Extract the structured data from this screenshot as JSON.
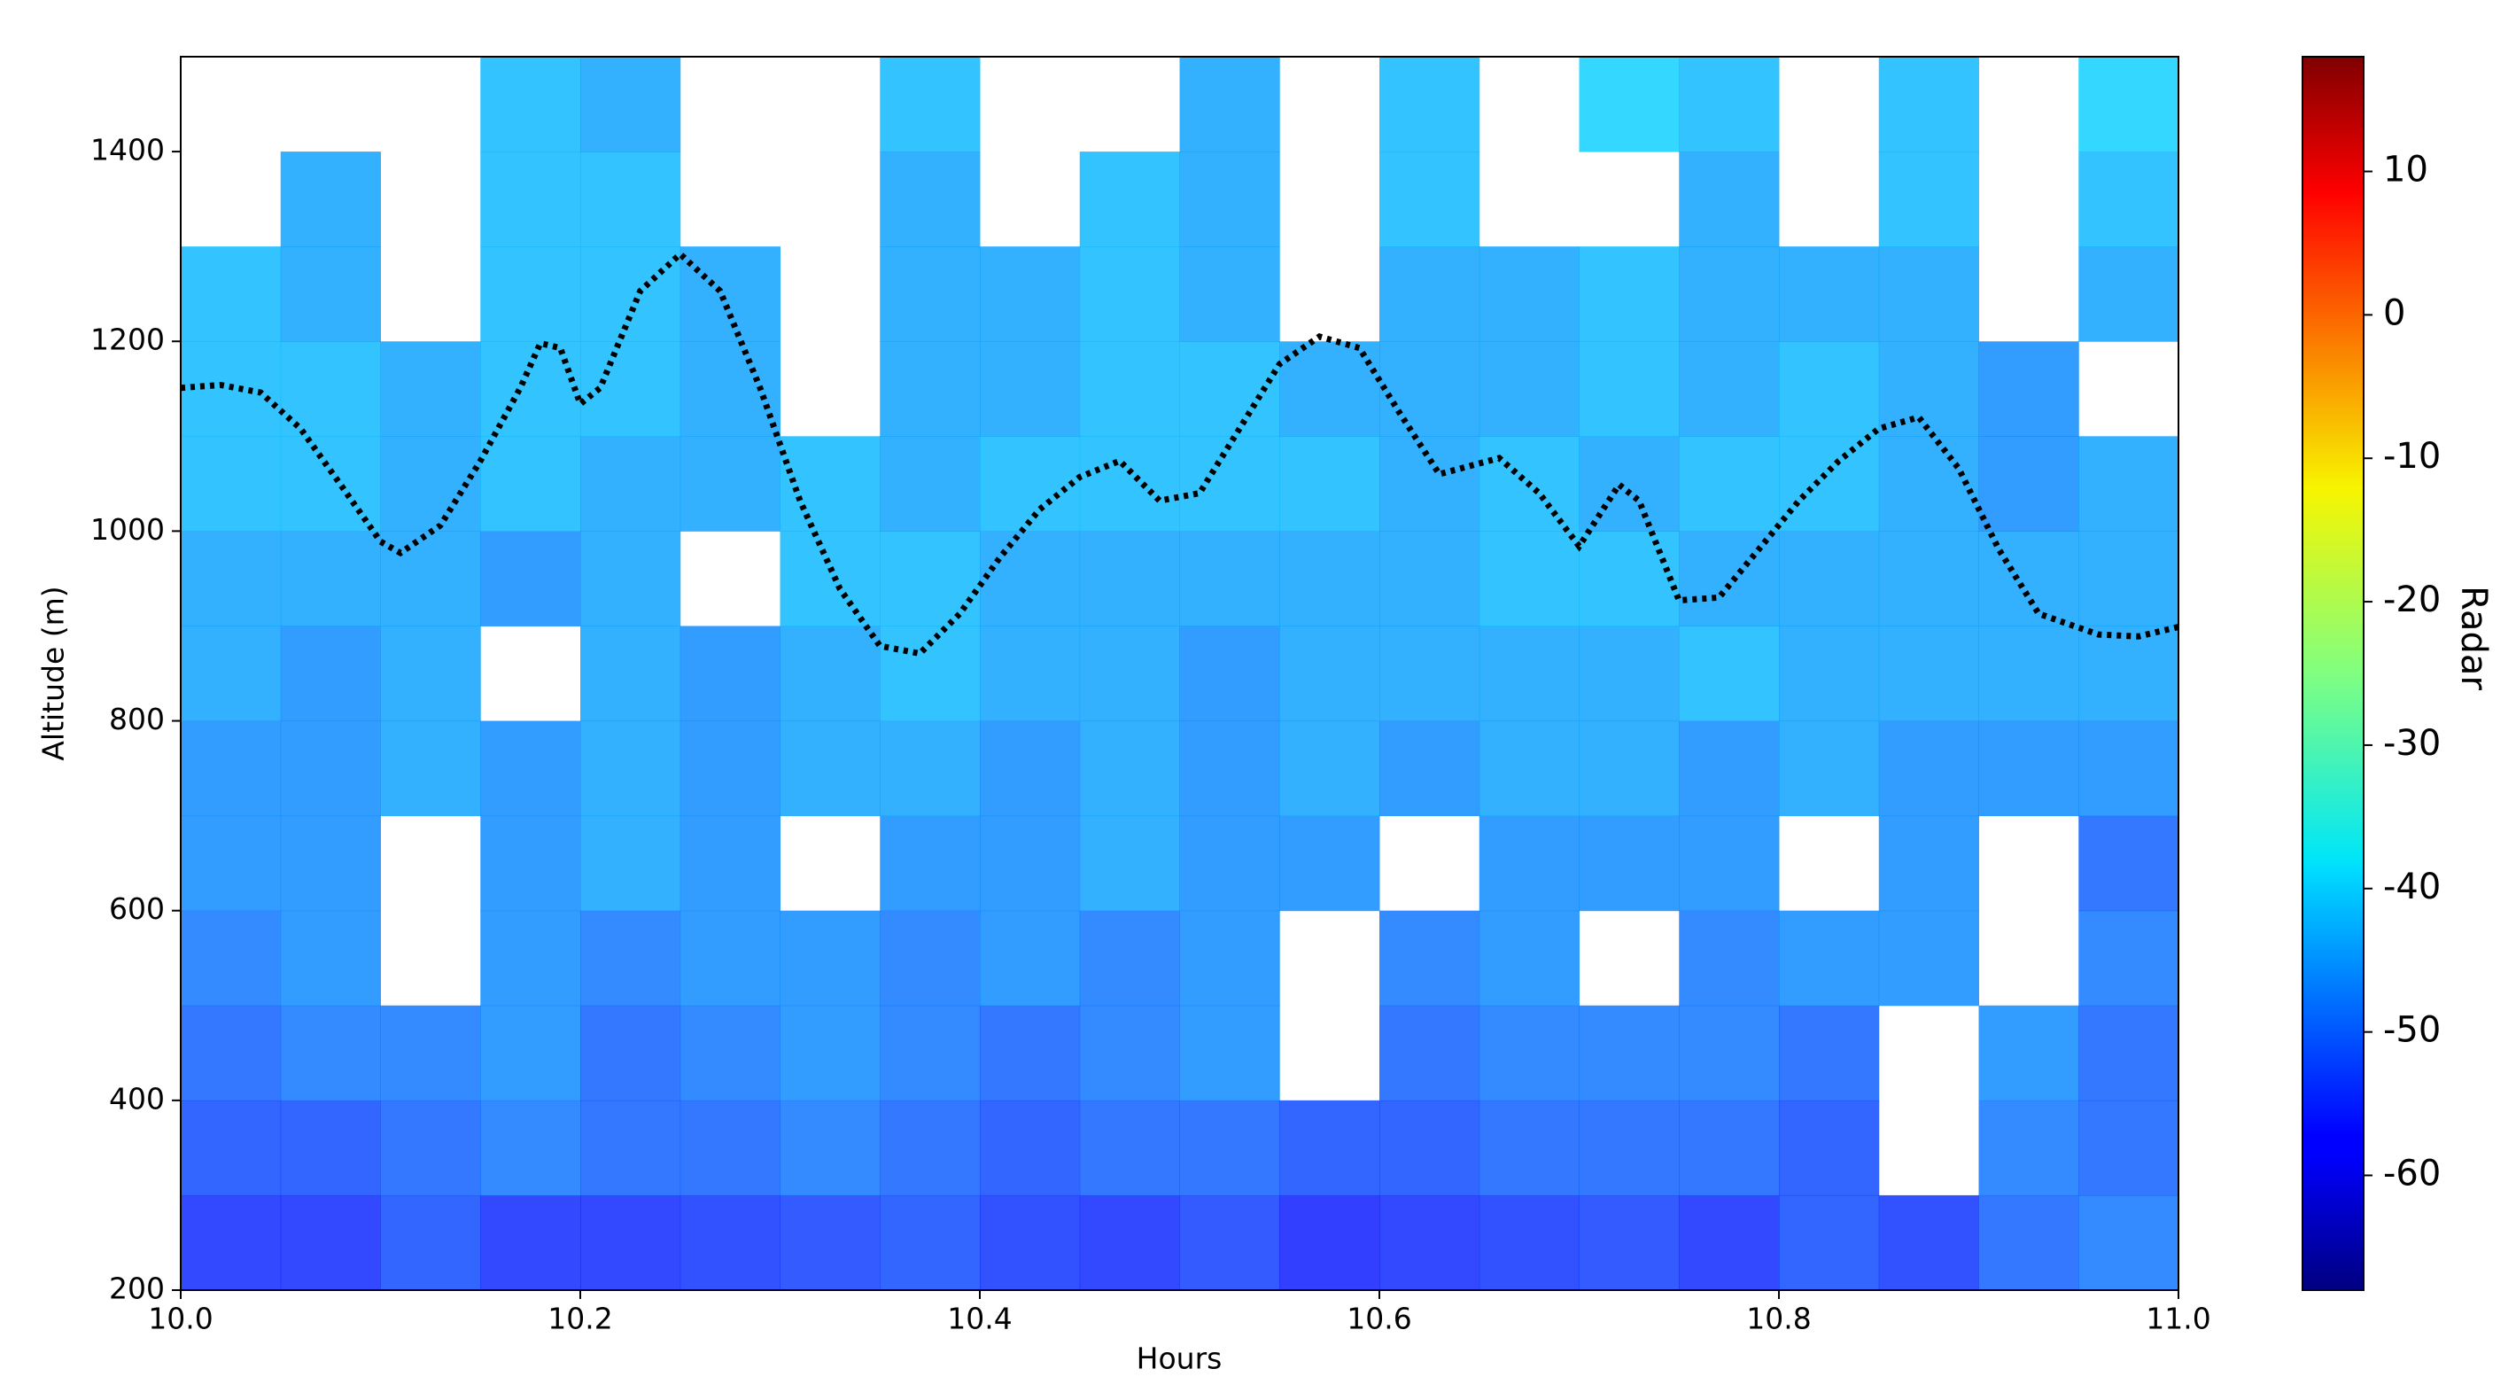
{
  "chart_data": {
    "type": "heatmap",
    "x_label": "Hours",
    "y_label": "Altitude (m)",
    "xlim": [
      10.0,
      11.0
    ],
    "xticks": [
      {
        "value": 10.0,
        "label": "10.0"
      },
      10.2,
      10.4,
      10.6,
      10.8,
      {
        "value": 11.0,
        "label": "11.0"
      }
    ],
    "ylim": [
      200,
      1500
    ],
    "yticks": [
      200,
      400,
      600,
      800,
      1000,
      1200,
      1400
    ],
    "x_bins": [
      10.0,
      10.05,
      10.1,
      10.15,
      10.2,
      10.25,
      10.3,
      10.35,
      10.4,
      10.45,
      10.5,
      10.55,
      10.6,
      10.65,
      10.7,
      10.75,
      10.8,
      10.85,
      10.9,
      10.95,
      11.0
    ],
    "y_bins": [
      200,
      300,
      400,
      500,
      600,
      700,
      800,
      900,
      1000,
      1100,
      1200,
      1300,
      1400,
      1500
    ],
    "z": [
      [
        -55,
        -55,
        -52,
        -55,
        -55,
        -54,
        -53,
        -52,
        -54,
        -55,
        -53,
        -56,
        -55,
        -54,
        -53,
        -55,
        -52,
        -54,
        -50,
        -48
      ],
      [
        -52,
        -52,
        -50,
        -48,
        -50,
        -50,
        -48,
        -50,
        -52,
        -50,
        -50,
        -52,
        -52,
        -50,
        -50,
        -50,
        -52,
        null,
        -48,
        -50
      ],
      [
        -50,
        -48,
        -48,
        -46,
        -50,
        -48,
        -46,
        -48,
        -50,
        -48,
        -46,
        null,
        -50,
        -48,
        -48,
        -48,
        -50,
        null,
        -46,
        -50
      ],
      [
        -48,
        -46,
        null,
        -46,
        -48,
        -46,
        -46,
        -48,
        -46,
        -48,
        -46,
        null,
        -48,
        -46,
        null,
        -48,
        -46,
        -46,
        null,
        -48
      ],
      [
        -46,
        -46,
        null,
        -46,
        -44,
        -46,
        null,
        -46,
        -46,
        -44,
        -46,
        -46,
        null,
        -46,
        -46,
        -46,
        null,
        -46,
        null,
        -50
      ],
      [
        -46,
        -46,
        -44,
        -46,
        -44,
        -46,
        -44,
        -44,
        -46,
        -44,
        -46,
        -44,
        -46,
        -44,
        -44,
        -46,
        -44,
        -46,
        -46,
        -46
      ],
      [
        -44,
        -46,
        -44,
        null,
        -44,
        -46,
        -44,
        -42,
        -44,
        -44,
        -46,
        -44,
        -44,
        -44,
        -44,
        -42,
        -44,
        -44,
        -44,
        -44
      ],
      [
        -44,
        -44,
        -44,
        -46,
        -44,
        null,
        -42,
        -42,
        -44,
        -44,
        -44,
        -44,
        -44,
        -42,
        -42,
        -44,
        -44,
        -44,
        -44,
        -44
      ],
      [
        -42,
        -42,
        -44,
        -42,
        -44,
        -44,
        -42,
        -44,
        -42,
        -42,
        -42,
        -42,
        -44,
        -42,
        -44,
        -42,
        -42,
        -44,
        -46,
        -44
      ],
      [
        -42,
        -42,
        -44,
        -42,
        -42,
        -44,
        null,
        -44,
        -44,
        -42,
        -42,
        -44,
        -44,
        -44,
        -42,
        -44,
        -42,
        -44,
        -46,
        null
      ],
      [
        -42,
        -44,
        null,
        -42,
        -42,
        -44,
        null,
        -44,
        -44,
        -42,
        -44,
        null,
        -44,
        -44,
        -42,
        -44,
        -44,
        -44,
        null,
        -44
      ],
      [
        null,
        -44,
        null,
        -42,
        -42,
        null,
        null,
        -44,
        null,
        -42,
        -44,
        null,
        -42,
        null,
        null,
        -44,
        null,
        -42,
        null,
        -42
      ],
      [
        null,
        null,
        null,
        -42,
        -44,
        null,
        null,
        -42,
        null,
        null,
        -44,
        null,
        -42,
        null,
        -40,
        -42,
        null,
        -42,
        null,
        -40
      ]
    ],
    "colorbar": {
      "label": "Radar",
      "colormap": "jet",
      "clim": [
        -68,
        18
      ],
      "ticks": [
        10,
        0,
        -10,
        -20,
        -30,
        -40,
        -50,
        -60
      ]
    },
    "line": {
      "color": "#000000",
      "style": "dotted",
      "x": [
        10.0,
        10.02,
        10.04,
        10.06,
        10.08,
        10.1,
        10.11,
        10.13,
        10.15,
        10.17,
        10.18,
        10.19,
        10.2,
        10.21,
        10.23,
        10.25,
        10.27,
        10.29,
        10.31,
        10.33,
        10.35,
        10.37,
        10.39,
        10.41,
        10.43,
        10.45,
        10.47,
        10.49,
        10.51,
        10.53,
        10.55,
        10.57,
        10.59,
        10.61,
        10.63,
        10.66,
        10.68,
        10.7,
        10.72,
        10.73,
        10.75,
        10.77,
        10.79,
        10.81,
        10.83,
        10.85,
        10.87,
        10.89,
        10.91,
        10.93,
        10.96,
        10.98,
        11.0
      ],
      "values": [
        1151,
        1154,
        1146,
        1108,
        1049,
        989,
        977,
        1006,
        1074,
        1151,
        1198,
        1193,
        1134,
        1151,
        1253,
        1292,
        1253,
        1151,
        1032,
        939,
        879,
        871,
        913,
        972,
        1023,
        1057,
        1074,
        1032,
        1040,
        1108,
        1176,
        1205,
        1193,
        1125,
        1060,
        1077,
        1040,
        984,
        1049,
        1032,
        927,
        930,
        981,
        1032,
        1074,
        1108,
        1120,
        1066,
        981,
        913,
        891,
        889,
        899
      ]
    }
  }
}
